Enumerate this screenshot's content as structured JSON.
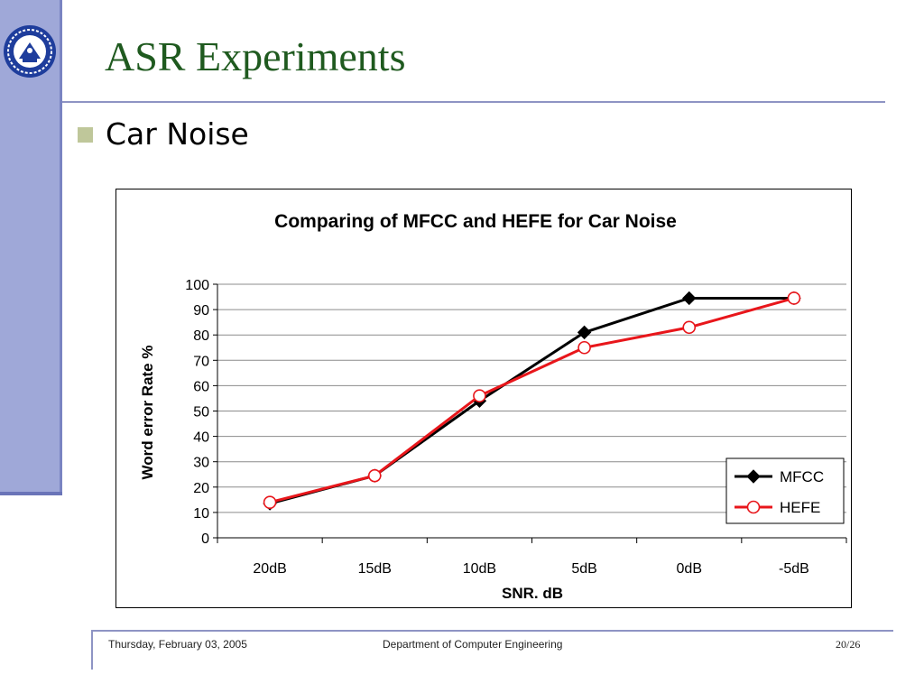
{
  "slide": {
    "title": "ASR Experiments",
    "bullet": "Car Noise"
  },
  "footer": {
    "date": "Thursday, February 03, 2005",
    "department": "Department of Computer Engineering",
    "page": "20/26"
  },
  "colors": {
    "title": "#1f5a1f",
    "sidebar": "#9fa8d8",
    "mfcc": "#000000",
    "hefe": "#e8161b"
  },
  "chart_data": {
    "type": "line",
    "title": "Comparing of MFCC and HEFE for Car Noise",
    "xlabel": "SNR. dB",
    "ylabel": "Word error Rate %",
    "categories": [
      "20dB",
      "15dB",
      "10dB",
      "5dB",
      "0dB",
      "-5dB"
    ],
    "ylim": [
      0,
      100
    ],
    "yticks": [
      0,
      10,
      20,
      30,
      40,
      50,
      60,
      70,
      80,
      90,
      100
    ],
    "grid": true,
    "legend": "bottom-right",
    "series": [
      {
        "name": "MFCC",
        "marker": "diamond",
        "values": [
          13.5,
          24.5,
          54,
          81,
          94.5,
          94.5
        ]
      },
      {
        "name": "HEFE",
        "marker": "circle",
        "values": [
          14,
          24.5,
          56,
          75,
          83,
          94.5
        ]
      }
    ]
  }
}
